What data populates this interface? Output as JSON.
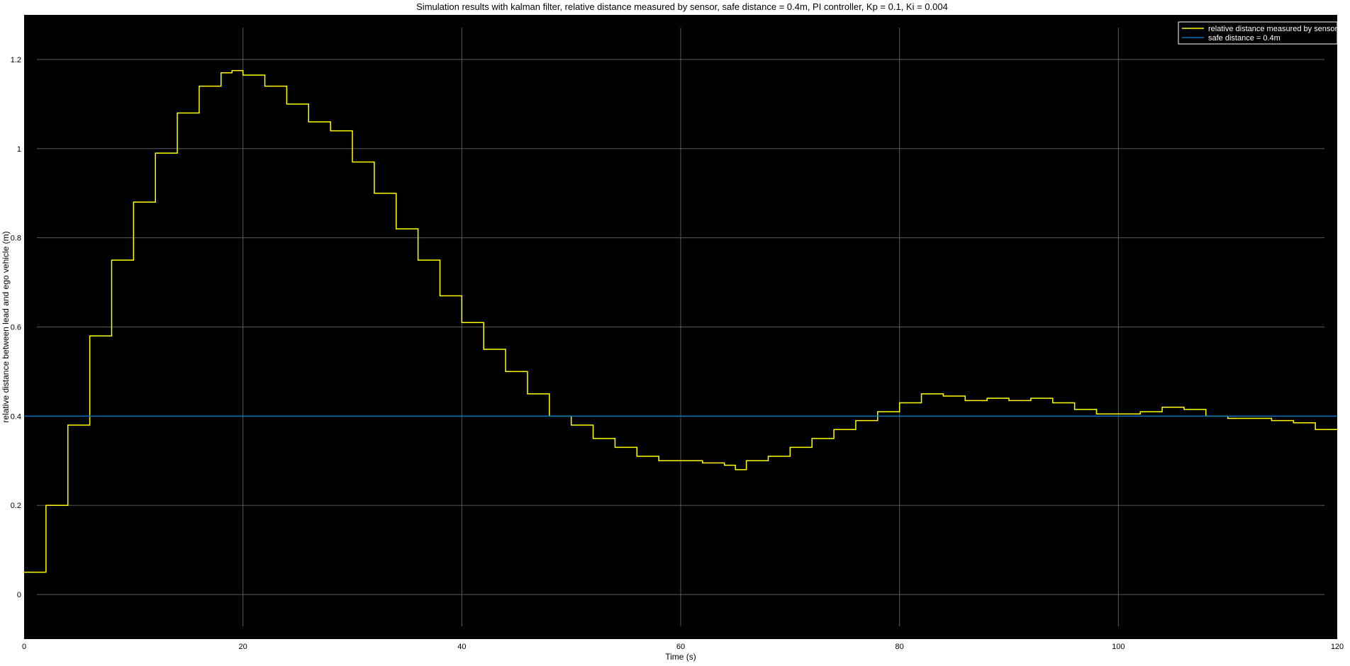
{
  "chart_data": {
    "type": "line",
    "title": "Simulation results with kalman filter, relative distance measured by sensor, safe distance = 0.4m, PI controller, Kp = 0.1, Ki = 0.004",
    "xlabel": "Time (s)",
    "ylabel": "relative distance between lead and ego vehicle (m)",
    "xlim": [
      0,
      120
    ],
    "ylim": [
      -0.1,
      1.3
    ],
    "xticks": [
      0,
      20,
      40,
      60,
      80,
      100,
      120
    ],
    "yticks": [
      0,
      0.2,
      0.4,
      0.6,
      0.8,
      1,
      1.2
    ],
    "grid": true,
    "legend_position": "top-right",
    "background": "#000000",
    "grid_color": "#5a5a5a",
    "series": [
      {
        "name": "relative distance measured by sensor",
        "color": "#ffff00",
        "step": true,
        "x": [
          0,
          2,
          4,
          6,
          8,
          10,
          12,
          14,
          16,
          18,
          19,
          20,
          22,
          24,
          26,
          28,
          30,
          32,
          34,
          36,
          38,
          40,
          42,
          44,
          46,
          48,
          50,
          52,
          54,
          56,
          58,
          60,
          62,
          64,
          65,
          66,
          68,
          70,
          72,
          74,
          76,
          78,
          80,
          82,
          84,
          86,
          88,
          90,
          92,
          94,
          96,
          98,
          100,
          102,
          104,
          106,
          108,
          110,
          112,
          114,
          116,
          118,
          120
        ],
        "y": [
          0.05,
          0.2,
          0.38,
          0.58,
          0.75,
          0.88,
          0.99,
          1.08,
          1.14,
          1.17,
          1.175,
          1.165,
          1.14,
          1.1,
          1.06,
          1.04,
          0.97,
          0.9,
          0.82,
          0.75,
          0.67,
          0.61,
          0.55,
          0.5,
          0.45,
          0.4,
          0.38,
          0.35,
          0.33,
          0.31,
          0.3,
          0.3,
          0.295,
          0.29,
          0.28,
          0.3,
          0.31,
          0.33,
          0.35,
          0.37,
          0.39,
          0.41,
          0.43,
          0.45,
          0.445,
          0.435,
          0.44,
          0.435,
          0.44,
          0.43,
          0.415,
          0.405,
          0.405,
          0.41,
          0.42,
          0.415,
          0.4,
          0.395,
          0.395,
          0.39,
          0.385,
          0.37,
          0.37
        ]
      },
      {
        "name": "safe distance = 0.4m",
        "color": "#0072bd",
        "step": false,
        "x": [
          0,
          120
        ],
        "y": [
          0.4,
          0.4
        ]
      }
    ]
  }
}
